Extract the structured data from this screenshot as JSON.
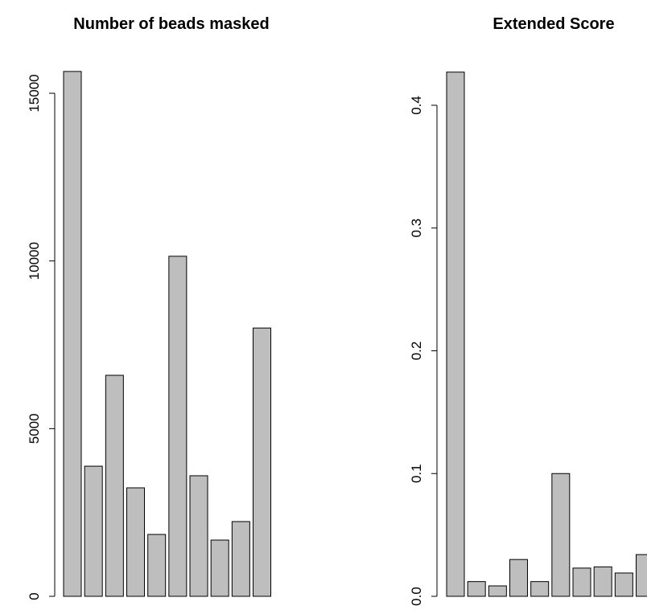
{
  "chart_data": [
    {
      "type": "bar",
      "title": "Number of beads masked",
      "values": [
        15650,
        3880,
        6590,
        3235,
        1845,
        10140,
        3595,
        1677,
        2229,
        8000
      ],
      "color": "#bebebe",
      "ylim": [
        0,
        16000
      ],
      "yticks": [
        0,
        5000,
        10000,
        15000
      ]
    },
    {
      "type": "bar",
      "title": "Extended Score",
      "values": [
        0.427,
        0.012,
        0.0085,
        0.03,
        0.012,
        0.1,
        0.023,
        0.024,
        0.019,
        0.034
      ],
      "color": "#bebebe",
      "ylim": [
        0,
        0.45
      ],
      "yticks": [
        {
          "value": 0,
          "label": "0.0"
        },
        0.1,
        0.2,
        0.3,
        0.4
      ]
    }
  ]
}
